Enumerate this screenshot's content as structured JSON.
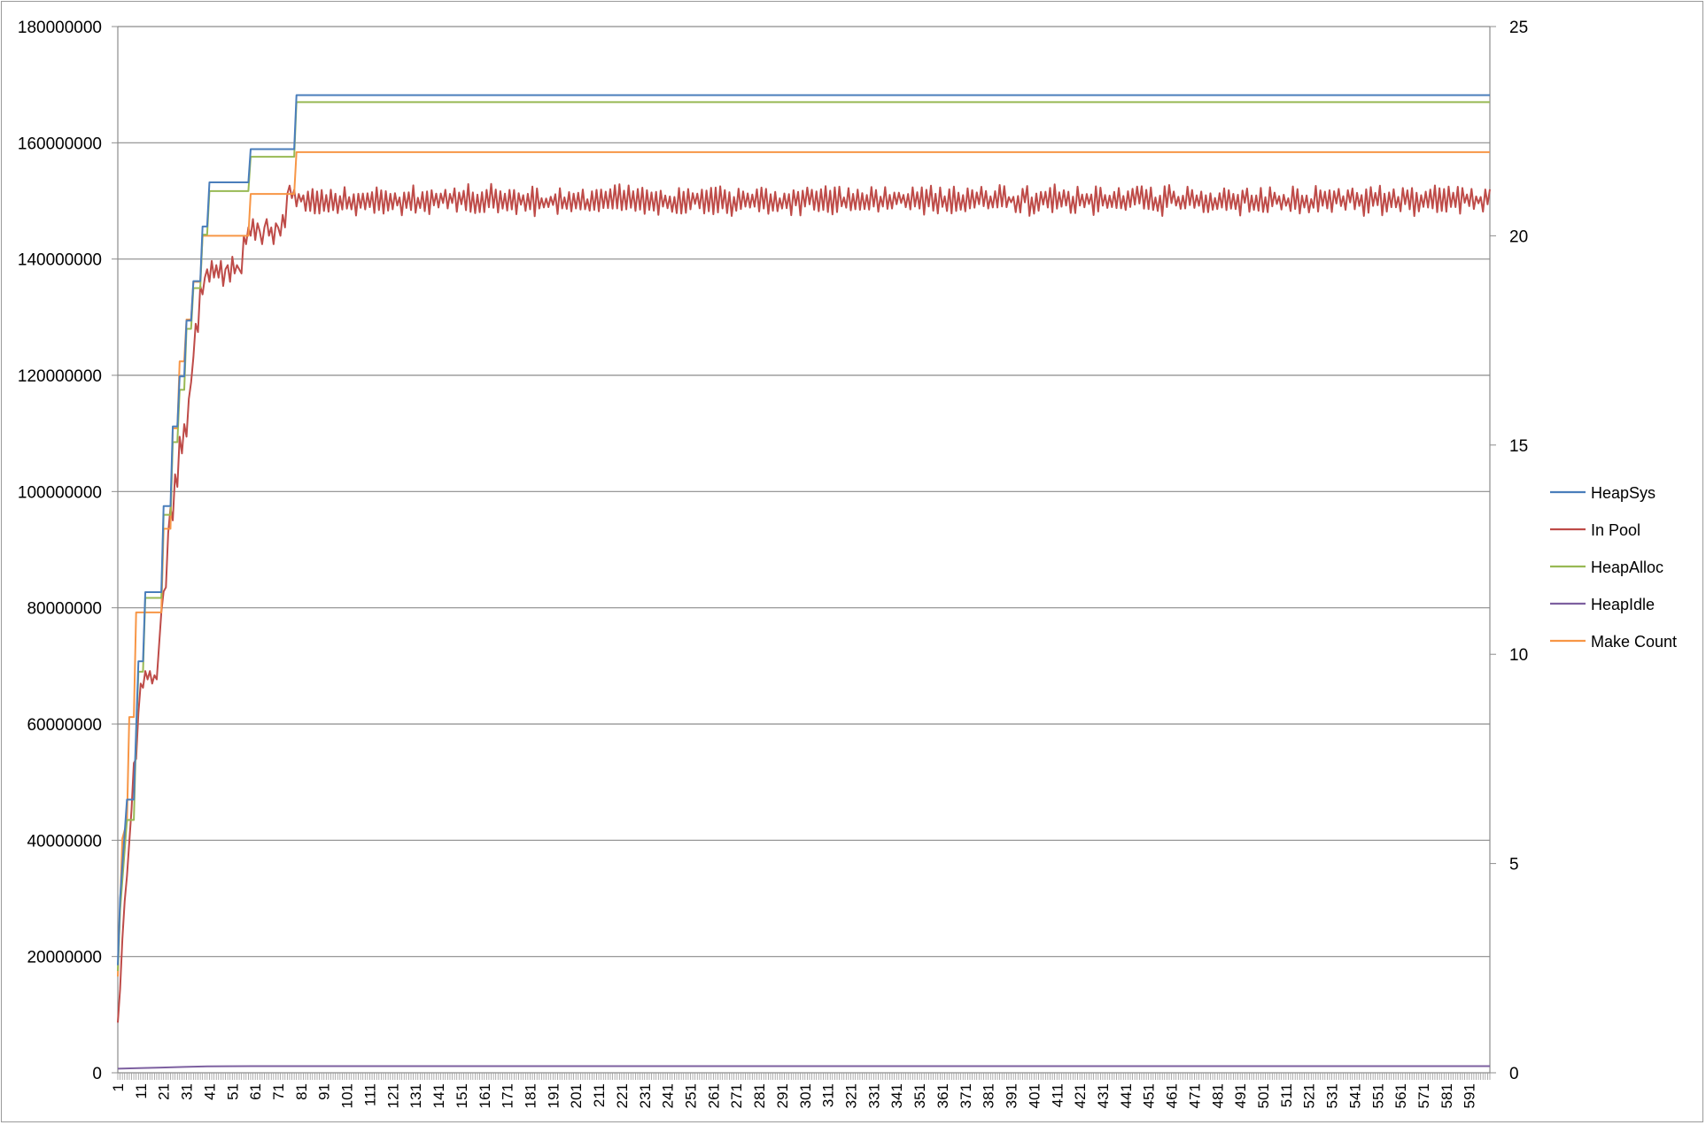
{
  "chart_data": {
    "type": "line",
    "title": "",
    "xlabel": "",
    "ylabel": "",
    "x_range": [
      1,
      600
    ],
    "x_tick_start": 1,
    "x_tick_step": 10,
    "x_tick_labels": [
      "1",
      "11",
      "21",
      "31",
      "41",
      "51",
      "61",
      "71",
      "81",
      "91",
      "101",
      "111",
      "121",
      "131",
      "141",
      "151",
      "161",
      "171",
      "181",
      "191",
      "201",
      "211",
      "221",
      "231",
      "241",
      "251",
      "261",
      "271",
      "281",
      "291",
      "301",
      "311",
      "321",
      "331",
      "341",
      "351",
      "361",
      "371",
      "381",
      "391",
      "401",
      "411",
      "421",
      "431",
      "441",
      "451",
      "461",
      "471",
      "481",
      "491",
      "501",
      "511",
      "521",
      "531",
      "541",
      "551",
      "561",
      "571",
      "581",
      "591"
    ],
    "y_left": {
      "min": 0,
      "max": 180000000,
      "step": 20000000,
      "tick_labels": [
        "0",
        "20000000",
        "40000000",
        "60000000",
        "80000000",
        "100000000",
        "120000000",
        "140000000",
        "160000000",
        "180000000"
      ]
    },
    "y_right": {
      "min": 0,
      "max": 25,
      "step": 5,
      "tick_labels": [
        "0",
        "5",
        "10",
        "15",
        "20",
        "25"
      ]
    },
    "grid": "horizontal",
    "legend_position": "right",
    "series": [
      {
        "name": "HeapSys",
        "color": "#4a7ebb",
        "axis": "left",
        "points": [
          [
            1,
            18500000
          ],
          [
            2,
            30000000
          ],
          [
            5,
            47000000
          ],
          [
            8,
            47000000
          ],
          [
            9,
            59000000
          ],
          [
            10,
            70800000
          ],
          [
            12,
            70800000
          ],
          [
            13,
            82700000
          ],
          [
            20,
            82700000
          ],
          [
            21,
            97500000
          ],
          [
            24,
            97500000
          ],
          [
            25,
            111200000
          ],
          [
            27,
            111200000
          ],
          [
            28,
            119800000
          ],
          [
            30,
            119800000
          ],
          [
            31,
            129400000
          ],
          [
            33,
            129400000
          ],
          [
            34,
            136200000
          ],
          [
            37,
            136200000
          ],
          [
            38,
            145600000
          ],
          [
            40,
            145600000
          ],
          [
            41,
            153200000
          ],
          [
            58,
            153200000
          ],
          [
            59,
            158900000
          ],
          [
            78,
            158900000
          ],
          [
            79,
            168200000
          ],
          [
            600,
            168200000
          ]
        ]
      },
      {
        "name": "In Pool",
        "color": "#be4b48",
        "axis": "right",
        "noise": {
          "x_from": 80,
          "x_to": 600,
          "center": 20.85,
          "amplitude": 0.32
        },
        "points": [
          [
            1,
            1.2
          ],
          [
            2,
            2.0
          ],
          [
            3,
            3.2
          ],
          [
            4,
            4.1
          ],
          [
            5,
            4.7
          ],
          [
            6,
            5.5
          ],
          [
            7,
            6.3
          ],
          [
            8,
            7.4
          ],
          [
            9,
            7.5
          ],
          [
            10,
            8.6
          ],
          [
            11,
            9.3
          ],
          [
            12,
            9.2
          ],
          [
            13,
            9.6
          ],
          [
            14,
            9.4
          ],
          [
            15,
            9.6
          ],
          [
            16,
            9.3
          ],
          [
            17,
            9.5
          ],
          [
            18,
            9.4
          ],
          [
            19,
            10.2
          ],
          [
            20,
            11.0
          ],
          [
            21,
            11.5
          ],
          [
            22,
            11.6
          ],
          [
            23,
            12.9
          ],
          [
            24,
            13.5
          ],
          [
            25,
            13.2
          ],
          [
            26,
            14.3
          ],
          [
            27,
            14.0
          ],
          [
            28,
            15.2
          ],
          [
            29,
            14.8
          ],
          [
            30,
            15.5
          ],
          [
            31,
            15.2
          ],
          [
            32,
            16.1
          ],
          [
            33,
            16.5
          ],
          [
            34,
            17.1
          ],
          [
            35,
            17.9
          ],
          [
            36,
            17.7
          ],
          [
            37,
            18.8
          ],
          [
            38,
            18.6
          ],
          [
            39,
            19.0
          ],
          [
            40,
            19.2
          ],
          [
            41,
            18.9
          ],
          [
            42,
            19.4
          ],
          [
            43,
            19.0
          ],
          [
            44,
            19.3
          ],
          [
            45,
            19.0
          ],
          [
            46,
            19.4
          ],
          [
            47,
            18.8
          ],
          [
            48,
            19.2
          ],
          [
            49,
            19.3
          ],
          [
            50,
            18.9
          ],
          [
            51,
            19.5
          ],
          [
            52,
            19.1
          ],
          [
            53,
            19.3
          ],
          [
            54,
            19.2
          ],
          [
            55,
            19.1
          ],
          [
            56,
            20.0
          ],
          [
            57,
            19.8
          ],
          [
            58,
            20.2
          ],
          [
            59,
            20.0
          ],
          [
            60,
            20.4
          ],
          [
            61,
            19.9
          ],
          [
            62,
            20.3
          ],
          [
            63,
            20.1
          ],
          [
            64,
            19.8
          ],
          [
            65,
            20.2
          ],
          [
            66,
            20.4
          ],
          [
            67,
            20.0
          ],
          [
            68,
            20.2
          ],
          [
            69,
            19.8
          ],
          [
            70,
            20.3
          ],
          [
            71,
            20.2
          ],
          [
            72,
            20.0
          ],
          [
            73,
            20.5
          ],
          [
            74,
            20.2
          ],
          [
            75,
            21.0
          ],
          [
            76,
            21.2
          ],
          [
            77,
            20.9
          ],
          [
            78,
            21.1
          ],
          [
            79,
            20.7
          ],
          [
            80,
            21.0
          ]
        ]
      },
      {
        "name": "HeapAlloc",
        "color": "#98b954",
        "axis": "left",
        "points": [
          [
            1,
            17500000
          ],
          [
            2,
            28000000
          ],
          [
            5,
            43500000
          ],
          [
            8,
            43500000
          ],
          [
            9,
            58000000
          ],
          [
            10,
            69000000
          ],
          [
            12,
            69000000
          ],
          [
            13,
            81700000
          ],
          [
            20,
            81700000
          ],
          [
            21,
            96000000
          ],
          [
            24,
            96000000
          ],
          [
            25,
            108500000
          ],
          [
            27,
            108500000
          ],
          [
            28,
            117500000
          ],
          [
            30,
            117500000
          ],
          [
            31,
            128000000
          ],
          [
            33,
            128000000
          ],
          [
            34,
            135000000
          ],
          [
            37,
            135000000
          ],
          [
            38,
            144200000
          ],
          [
            40,
            144200000
          ],
          [
            41,
            151700000
          ],
          [
            58,
            151700000
          ],
          [
            59,
            157600000
          ],
          [
            78,
            157600000
          ],
          [
            79,
            167000000
          ],
          [
            600,
            167000000
          ]
        ]
      },
      {
        "name": "HeapIdle",
        "color": "#7d60a0",
        "axis": "left",
        "points": [
          [
            1,
            700000
          ],
          [
            10,
            800000
          ],
          [
            20,
            900000
          ],
          [
            30,
            1000000
          ],
          [
            40,
            1100000
          ],
          [
            60,
            1150000
          ],
          [
            600,
            1150000
          ]
        ]
      },
      {
        "name": "Make Count",
        "color": "#f79646",
        "axis": "right",
        "points": [
          [
            1,
            2.3
          ],
          [
            2,
            4.0
          ],
          [
            3,
            5.6
          ],
          [
            5,
            6.0
          ],
          [
            6,
            8.5
          ],
          [
            8,
            8.5
          ],
          [
            9,
            11.0
          ],
          [
            20,
            11.0
          ],
          [
            21,
            13.0
          ],
          [
            24,
            13.0
          ],
          [
            25,
            15.4
          ],
          [
            27,
            15.4
          ],
          [
            28,
            17.0
          ],
          [
            30,
            17.0
          ],
          [
            31,
            18.0
          ],
          [
            33,
            18.0
          ],
          [
            34,
            18.9
          ],
          [
            37,
            18.9
          ],
          [
            38,
            20.0
          ],
          [
            58,
            20.0
          ],
          [
            59,
            21.0
          ],
          [
            78,
            21.0
          ],
          [
            79,
            22.0
          ],
          [
            600,
            22.0
          ]
        ]
      }
    ]
  }
}
